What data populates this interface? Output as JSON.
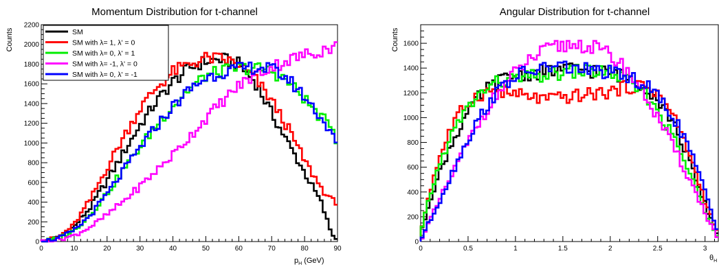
{
  "chart_data": [
    {
      "type": "line",
      "title": "Momentum Distribution for t-channel",
      "xlabel": "p",
      "xlabel_sub": "H",
      "xlabel_unit": "(GeV)",
      "ylabel": "Counts",
      "xlim": [
        0,
        90
      ],
      "ylim": [
        0,
        2200
      ],
      "xticks": [
        0,
        10,
        20,
        30,
        40,
        50,
        60,
        70,
        80,
        90
      ],
      "yticks": [
        0,
        200,
        400,
        600,
        800,
        1000,
        1200,
        1400,
        1600,
        1800,
        2000,
        2200
      ],
      "legend_position": "top-left",
      "x": [
        0,
        5,
        10,
        15,
        20,
        25,
        30,
        35,
        40,
        45,
        50,
        55,
        60,
        65,
        70,
        75,
        80,
        85,
        88,
        90
      ],
      "series": [
        {
          "name": "SM",
          "color": "#000000",
          "values": [
            0,
            40,
            150,
            350,
            620,
            900,
            1180,
            1420,
            1620,
            1760,
            1830,
            1850,
            1800,
            1620,
            1300,
            1000,
            700,
            400,
            100,
            0
          ]
        },
        {
          "name": "SM with λ= 1, λ' = 0",
          "color": "#ff0000",
          "values": [
            0,
            40,
            170,
            430,
            750,
            1060,
            1350,
            1560,
            1720,
            1800,
            1860,
            1850,
            1800,
            1650,
            1430,
            1150,
            820,
            550,
            420,
            400
          ]
        },
        {
          "name": "SM with λ= 0, λ' = 1",
          "color": "#00ee00",
          "values": [
            0,
            30,
            110,
            280,
            490,
            730,
            960,
            1180,
            1380,
            1550,
            1680,
            1730,
            1760,
            1760,
            1730,
            1620,
            1450,
            1250,
            1200,
            1000
          ]
        },
        {
          "name": "SM with λ= -1, λ' = 0",
          "color": "#ff00ff",
          "values": [
            0,
            20,
            60,
            150,
            270,
            410,
            560,
            720,
            880,
            1060,
            1250,
            1420,
            1580,
            1690,
            1770,
            1840,
            1890,
            1940,
            1970,
            1980
          ]
        },
        {
          "name": "SM with λ= 0, λ' = -1",
          "color": "#0000ff",
          "values": [
            0,
            30,
            110,
            270,
            480,
            720,
            950,
            1170,
            1370,
            1540,
            1660,
            1720,
            1750,
            1770,
            1750,
            1650,
            1470,
            1260,
            1100,
            960
          ]
        }
      ]
    },
    {
      "type": "line",
      "title": "Angular Distribution for t-channel",
      "xlabel": "θ",
      "xlabel_sub": "H",
      "ylabel": "Counts",
      "xlim": [
        0,
        3.14
      ],
      "ylim": [
        0,
        1750
      ],
      "xticks": [
        0,
        0.5,
        1,
        1.5,
        2,
        2.5,
        3
      ],
      "yticks": [
        0,
        200,
        400,
        600,
        800,
        1000,
        1200,
        1400,
        1600
      ],
      "x": [
        0,
        0.1,
        0.2,
        0.3,
        0.4,
        0.5,
        0.6,
        0.7,
        0.8,
        0.9,
        1.0,
        1.1,
        1.2,
        1.3,
        1.4,
        1.5,
        1.6,
        1.7,
        1.8,
        1.9,
        2.0,
        2.1,
        2.2,
        2.3,
        2.4,
        2.5,
        2.6,
        2.7,
        2.8,
        2.9,
        3.0,
        3.1,
        3.14
      ],
      "series": [
        {
          "name": "SM",
          "color": "#000000",
          "values": [
            50,
            350,
            550,
            750,
            900,
            1050,
            1150,
            1230,
            1280,
            1320,
            1340,
            1350,
            1360,
            1370,
            1380,
            1390,
            1390,
            1390,
            1380,
            1370,
            1360,
            1340,
            1320,
            1280,
            1230,
            1150,
            1040,
            900,
            720,
            500,
            300,
            120,
            50
          ]
        },
        {
          "name": "SM with λ= 1, λ' = 0",
          "color": "#ff0000",
          "values": [
            80,
            420,
            680,
            880,
            1020,
            1120,
            1180,
            1210,
            1220,
            1200,
            1190,
            1170,
            1160,
            1150,
            1150,
            1160,
            1170,
            1180,
            1190,
            1200,
            1210,
            1230,
            1250,
            1260,
            1250,
            1200,
            1100,
            960,
            780,
            560,
            330,
            130,
            50
          ]
        },
        {
          "name": "SM with λ= 0, λ' = 1",
          "color": "#00ee00",
          "values": [
            60,
            380,
            620,
            820,
            960,
            1080,
            1170,
            1240,
            1280,
            1300,
            1310,
            1320,
            1330,
            1340,
            1350,
            1360,
            1370,
            1380,
            1380,
            1370,
            1360,
            1330,
            1290,
            1230,
            1160,
            1060,
            930,
            790,
            620,
            430,
            250,
            100,
            40
          ]
        },
        {
          "name": "SM with λ= -1, λ' = 0",
          "color": "#ff00ff",
          "values": [
            20,
            170,
            330,
            490,
            650,
            800,
            940,
            1070,
            1180,
            1280,
            1360,
            1430,
            1490,
            1530,
            1560,
            1580,
            1590,
            1590,
            1570,
            1540,
            1500,
            1440,
            1360,
            1260,
            1140,
            1000,
            860,
            710,
            560,
            400,
            230,
            80,
            30
          ]
        },
        {
          "name": "SM with λ= 0, λ' = -1",
          "color": "#0000ff",
          "values": [
            20,
            170,
            330,
            500,
            670,
            830,
            970,
            1100,
            1200,
            1280,
            1330,
            1360,
            1380,
            1400,
            1410,
            1410,
            1400,
            1390,
            1380,
            1370,
            1360,
            1340,
            1320,
            1290,
            1240,
            1170,
            1080,
            960,
            810,
            620,
            400,
            160,
            60
          ]
        }
      ]
    }
  ]
}
